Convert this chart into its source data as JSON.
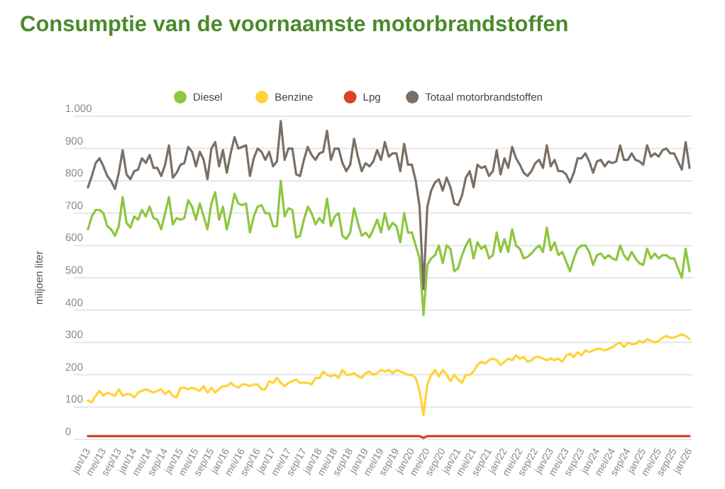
{
  "chart_data": {
    "type": "line",
    "title": "Consumptie van de voornaamste motorbrandstoffen",
    "ylabel": "miljoen liter",
    "categories": [
      "jan/13",
      null,
      null,
      null,
      "mei/13",
      null,
      null,
      null,
      "sep/13",
      null,
      null,
      null,
      "jan/14",
      null,
      null,
      null,
      "mei/14",
      null,
      null,
      null,
      "sep/14",
      null,
      null,
      null,
      "jan/15",
      null,
      null,
      null,
      "mei/15",
      null,
      null,
      null,
      "sep/15",
      null,
      null,
      null,
      "jan/16",
      null,
      null,
      null,
      "mei/16",
      null,
      null,
      null,
      "sep/16",
      null,
      null,
      null,
      "jan/17",
      null,
      null,
      null,
      "mei/17",
      null,
      null,
      null,
      "sep/17",
      null,
      null,
      null,
      "jan/18",
      null,
      null,
      null,
      "mei/18",
      null,
      null,
      null,
      "sep/18",
      null,
      null,
      null,
      "jan/19",
      null,
      null,
      null,
      "mei/19",
      null,
      null,
      null,
      "sep/19",
      null,
      null,
      null,
      "jan/20",
      null,
      null,
      null,
      "mei/20",
      null,
      null,
      null,
      "sep/20",
      null,
      null,
      null,
      "jan/21",
      null,
      null,
      null,
      "mei/21",
      null,
      null,
      null,
      "sep/21",
      null,
      null,
      null,
      "jan/22",
      null,
      null,
      null,
      "mei/22",
      null,
      null,
      null,
      "sep/22",
      null,
      null,
      null,
      "jan/23",
      null,
      null,
      null,
      "mei/23",
      null,
      null,
      null,
      "sep/23",
      null,
      null,
      null,
      "jan/24",
      null,
      null,
      null,
      "mei/24",
      null,
      null,
      null,
      "sep/24",
      null,
      null,
      null,
      "jan/25",
      null,
      null,
      null,
      "mei/25",
      null,
      null,
      null,
      "sep/25",
      null,
      null,
      null,
      "jan/26"
    ],
    "series": [
      {
        "name": "Diesel",
        "color": "#8dc63f",
        "values": [
          650,
          690,
          710,
          710,
          700,
          660,
          650,
          630,
          660,
          750,
          670,
          655,
          690,
          680,
          710,
          690,
          720,
          685,
          680,
          650,
          700,
          750,
          665,
          685,
          680,
          685,
          740,
          720,
          680,
          730,
          690,
          650,
          730,
          765,
          680,
          720,
          650,
          700,
          760,
          730,
          725,
          730,
          640,
          690,
          720,
          725,
          700,
          700,
          660,
          660,
          800,
          690,
          715,
          710,
          625,
          630,
          680,
          720,
          700,
          665,
          685,
          670,
          745,
          660,
          690,
          700,
          630,
          620,
          640,
          715,
          670,
          630,
          640,
          625,
          650,
          680,
          640,
          700,
          650,
          670,
          660,
          610,
          700,
          640,
          640,
          600,
          560,
          385,
          540,
          560,
          570,
          600,
          545,
          600,
          590,
          520,
          530,
          570,
          600,
          620,
          560,
          610,
          590,
          600,
          560,
          570,
          640,
          580,
          620,
          580,
          650,
          600,
          590,
          560,
          565,
          575,
          590,
          600,
          580,
          655,
          585,
          610,
          570,
          580,
          550,
          520,
          560,
          590,
          600,
          600,
          580,
          540,
          570,
          575,
          560,
          570,
          560,
          555,
          600,
          570,
          555,
          580,
          560,
          545,
          540,
          590,
          560,
          575,
          560,
          570,
          570,
          560,
          560,
          530,
          500,
          590,
          520
        ]
      },
      {
        "name": "Benzine",
        "color": "#ffd33a",
        "values": [
          120,
          115,
          135,
          150,
          135,
          145,
          140,
          135,
          155,
          135,
          140,
          140,
          130,
          145,
          150,
          155,
          150,
          145,
          150,
          155,
          140,
          150,
          135,
          130,
          160,
          160,
          155,
          160,
          155,
          150,
          165,
          145,
          160,
          145,
          155,
          165,
          165,
          175,
          165,
          160,
          170,
          170,
          165,
          170,
          170,
          155,
          155,
          180,
          175,
          190,
          175,
          165,
          175,
          180,
          185,
          175,
          175,
          175,
          170,
          190,
          190,
          210,
          200,
          195,
          200,
          190,
          215,
          200,
          200,
          205,
          195,
          190,
          205,
          210,
          200,
          205,
          215,
          210,
          215,
          205,
          215,
          210,
          205,
          200,
          200,
          190,
          150,
          75,
          170,
          200,
          215,
          195,
          215,
          200,
          180,
          200,
          185,
          175,
          200,
          200,
          210,
          230,
          240,
          235,
          245,
          250,
          245,
          230,
          240,
          250,
          245,
          260,
          250,
          255,
          240,
          245,
          255,
          255,
          250,
          245,
          250,
          245,
          250,
          240,
          260,
          265,
          255,
          270,
          260,
          275,
          270,
          275,
          280,
          280,
          275,
          280,
          285,
          295,
          300,
          285,
          300,
          295,
          295,
          305,
          300,
          310,
          305,
          300,
          305,
          315,
          320,
          315,
          315,
          320,
          325,
          320,
          310
        ]
      },
      {
        "name": "Lpg",
        "color": "#d9412b",
        "values": [
          10,
          10,
          10,
          10,
          10,
          10,
          10,
          10,
          10,
          10,
          10,
          10,
          10,
          10,
          10,
          10,
          10,
          10,
          10,
          10,
          10,
          10,
          10,
          10,
          10,
          10,
          10,
          10,
          10,
          10,
          10,
          10,
          10,
          10,
          10,
          10,
          10,
          10,
          10,
          10,
          10,
          10,
          10,
          10,
          10,
          10,
          10,
          10,
          10,
          10,
          10,
          10,
          10,
          10,
          10,
          10,
          10,
          10,
          10,
          10,
          10,
          10,
          10,
          10,
          10,
          10,
          10,
          10,
          10,
          10,
          10,
          10,
          10,
          10,
          10,
          10,
          10,
          10,
          10,
          10,
          10,
          10,
          10,
          10,
          10,
          10,
          10,
          5,
          10,
          10,
          10,
          10,
          10,
          10,
          10,
          10,
          10,
          10,
          10,
          10,
          10,
          10,
          10,
          10,
          10,
          10,
          10,
          10,
          10,
          10,
          10,
          10,
          10,
          10,
          10,
          10,
          10,
          10,
          10,
          10,
          10,
          10,
          10,
          10,
          10,
          10,
          10,
          10,
          10,
          10,
          10,
          10,
          10,
          10,
          10,
          10,
          10,
          10,
          10,
          10,
          10,
          10,
          10,
          10,
          10,
          10,
          10,
          10,
          10,
          10,
          10,
          10,
          10,
          10,
          10,
          10,
          10
        ]
      },
      {
        "name": "Totaal motorbrandstoffen",
        "color": "#7a6f66",
        "values": [
          780,
          815,
          855,
          870,
          845,
          815,
          800,
          775,
          825,
          895,
          820,
          805,
          830,
          835,
          870,
          855,
          880,
          840,
          840,
          815,
          850,
          910,
          810,
          825,
          850,
          855,
          905,
          890,
          845,
          890,
          865,
          805,
          900,
          920,
          845,
          895,
          825,
          885,
          935,
          900,
          905,
          910,
          815,
          870,
          900,
          890,
          865,
          890,
          845,
          860,
          985,
          865,
          900,
          900,
          820,
          815,
          865,
          905,
          880,
          865,
          885,
          890,
          955,
          865,
          900,
          900,
          855,
          830,
          850,
          930,
          875,
          830,
          855,
          845,
          860,
          895,
          865,
          920,
          875,
          885,
          885,
          830,
          915,
          850,
          850,
          800,
          720,
          465,
          720,
          770,
          795,
          805,
          770,
          810,
          780,
          730,
          725,
          755,
          810,
          830,
          780,
          850,
          840,
          845,
          815,
          830,
          895,
          820,
          870,
          840,
          905,
          870,
          850,
          825,
          815,
          830,
          855,
          865,
          840,
          910,
          845,
          865,
          830,
          830,
          820,
          795,
          825,
          870,
          870,
          885,
          860,
          825,
          860,
          865,
          845,
          860,
          855,
          860,
          910,
          865,
          865,
          885,
          865,
          860,
          850,
          910,
          875,
          885,
          875,
          895,
          900,
          885,
          885,
          860,
          835,
          920,
          840
        ]
      }
    ],
    "ylim": [
      0,
      1000
    ],
    "yticks": [
      0,
      100,
      200,
      300,
      400,
      500,
      600,
      700,
      800,
      900,
      {
        "value": 1000,
        "label": "1.000"
      }
    ],
    "grid": "y",
    "legend": "top",
    "marker": "none",
    "line_style": "solid"
  }
}
